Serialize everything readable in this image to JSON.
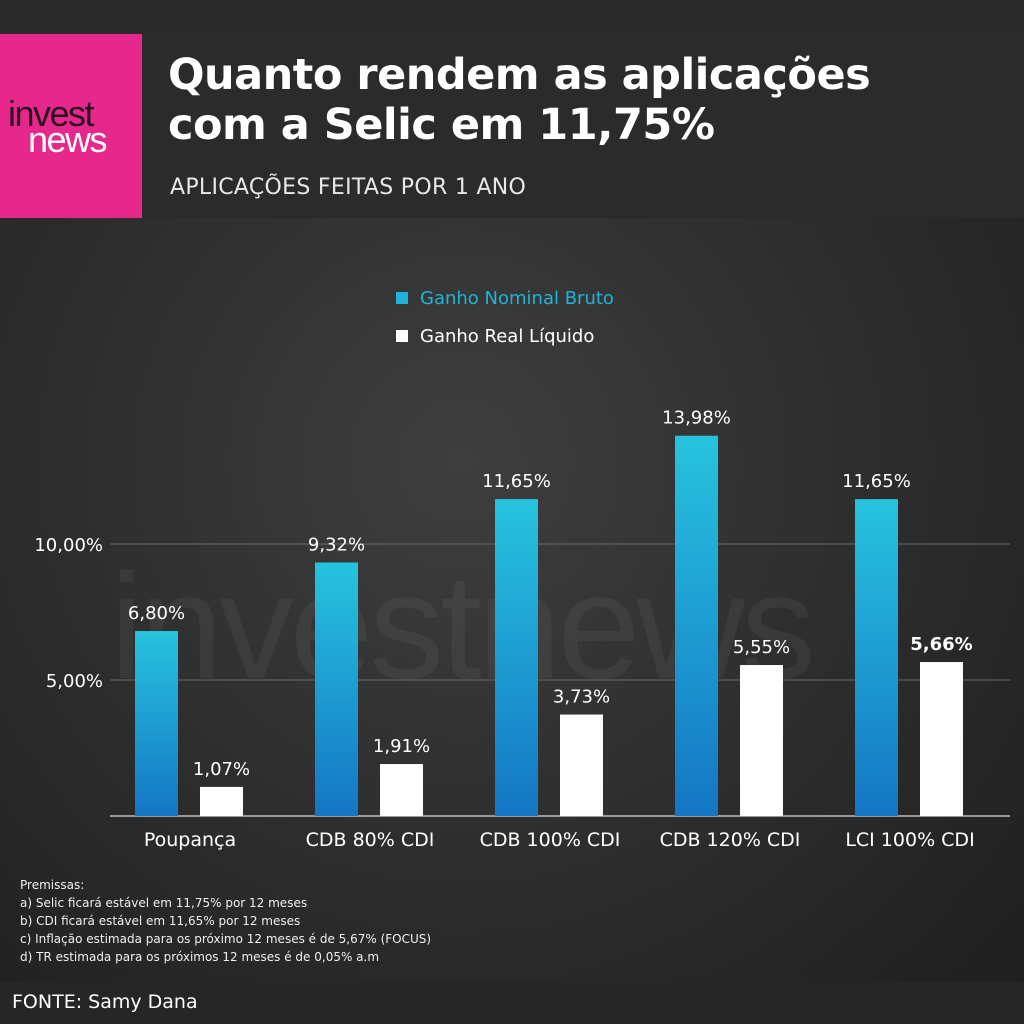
{
  "brand": {
    "logo_line1": "invest",
    "logo_line2": "news",
    "watermark": "investnews",
    "pink": "#e6278c"
  },
  "header": {
    "title_line1": "Quanto rendem as aplicações",
    "title_line2": "com a Selic em 11,75%",
    "subtitle": "APLICAÇÕES FEITAS POR 1 ANO"
  },
  "chart_data": {
    "type": "bar",
    "categories": [
      "Poupança",
      "CDB 80% CDI",
      "CDB 100% CDI",
      "CDB 120% CDI",
      "LCI 100% CDI"
    ],
    "series": [
      {
        "name": "Ganho Nominal Bruto",
        "color": "#1fb3d9",
        "values": [
          6.8,
          9.32,
          11.65,
          13.98,
          11.65
        ],
        "labels": [
          "6,80%",
          "9,32%",
          "11,65%",
          "13,98%",
          "11,65%"
        ]
      },
      {
        "name": "Ganho Real Líquido",
        "color": "#ffffff",
        "values": [
          1.07,
          1.91,
          3.73,
          5.55,
          5.66
        ],
        "labels": [
          "1,07%",
          "1,91%",
          "3,73%",
          "5,55%",
          "5,66%"
        ]
      }
    ],
    "yticks": [
      5,
      10
    ],
    "ytick_labels": [
      "5,00%",
      "10,00%"
    ],
    "ylim": [
      0,
      15
    ],
    "grid": true,
    "legend_position": "top-center"
  },
  "notes": {
    "heading": "Premissas:",
    "items": [
      "a) Selic ficará estável em 11,75% por 12 meses",
      "b) CDI ficará estável em 11,65% por 12 meses",
      "c) Inflação estimada para os próximo 12 meses é de 5,67% (FOCUS)",
      "d) TR estimada para os próximos 12 meses é de 0,05% a.m"
    ]
  },
  "footer": {
    "source": "FONTE: Samy Dana"
  }
}
